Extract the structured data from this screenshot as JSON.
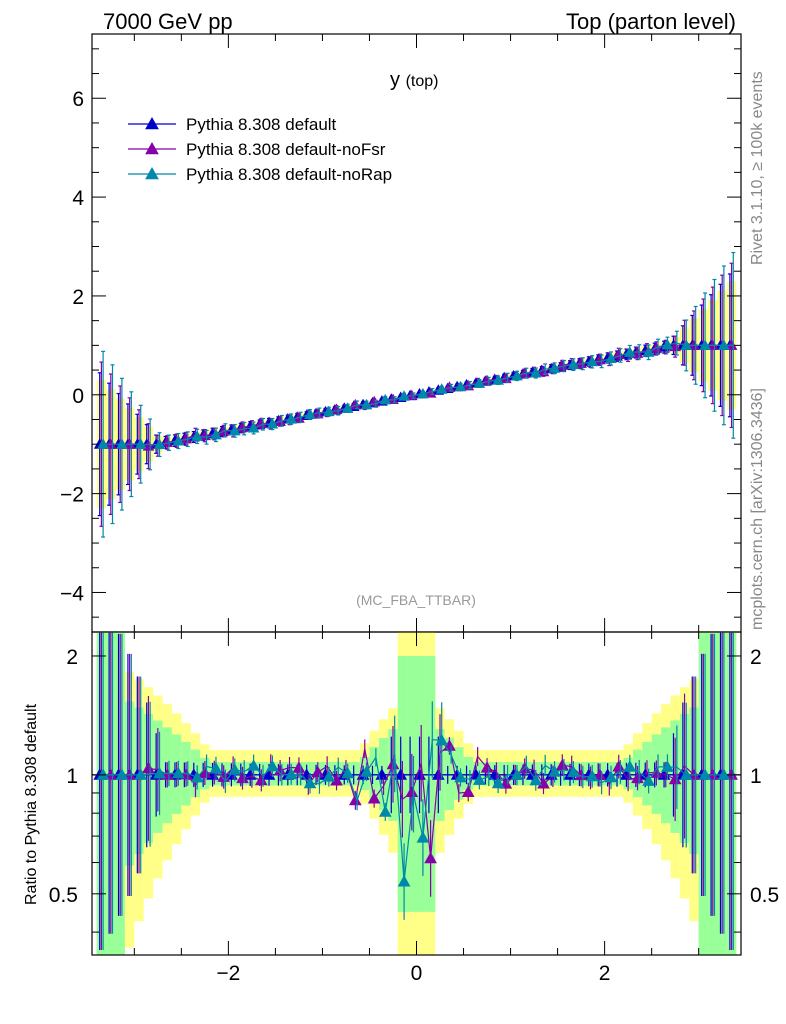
{
  "header": {
    "left": "7000 GeV pp",
    "right": "Top (parton level)"
  },
  "side_labels": {
    "rivet": "Rivet 3.1.10, ≥ 100k events",
    "mcplots": "mcplots.cern.ch [arXiv:1306.3436]"
  },
  "chart_data": [
    {
      "type": "line",
      "panel": "main",
      "title": "y",
      "title_sub": "(top)",
      "analysis_tag": "(MC_FBA_TTBAR)",
      "xlabel": "",
      "ylabel": "",
      "xlim": [
        -3.45,
        3.45
      ],
      "ylim": [
        -4.8,
        7.3
      ],
      "yticks": [
        -4,
        -2,
        0,
        2,
        4,
        6
      ],
      "legend_position": "top-left",
      "series": [
        {
          "name": "Pythia 8.308 default",
          "color": "#0000cc",
          "marker": "triangle",
          "points": [
            [
              -3.35,
              -1.0,
              1.4
            ],
            [
              -3.15,
              -1.0,
              1.25
            ],
            [
              -2.95,
              -1.0,
              1.1
            ]
          ],
          "extra_points": [
            [
              3.35,
              1.0,
              1.4
            ]
          ]
        },
        {
          "name": "Pythia 8.308 default-noFsr",
          "color": "#8800aa",
          "marker": "triangle",
          "points": [
            [
              -3.25,
              -1.0,
              1.4
            ]
          ]
        },
        {
          "name": "Pythia 8.308 default-noRap",
          "color": "#0088aa",
          "marker": "triangle",
          "points": [
            [
              -3.05,
              -1.0,
              0.9
            ]
          ]
        }
      ]
    },
    {
      "type": "line",
      "panel": "ratio",
      "ylabel": "Ratio to Pythia 8.308 default",
      "xlim": [
        -3.45,
        3.45
      ],
      "ylim": [
        0.35,
        2.3
      ],
      "yticks": [
        0.5,
        1,
        2
      ],
      "xticks": [
        -2,
        0,
        2
      ],
      "reference_line": 1.0
    }
  ]
}
